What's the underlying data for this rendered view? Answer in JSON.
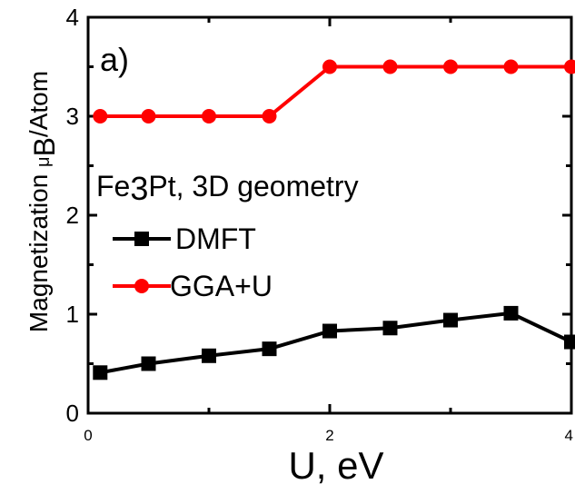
{
  "chart_data": {
    "type": "line",
    "panel_label": "a)",
    "xlabel": "U, eV",
    "ylabel": "Magnetization μ_B/Atom",
    "ylabel_parts": {
      "main": "Magnetization ",
      "mu": "μ",
      "sub": "B",
      "tail": "/Atom"
    },
    "xlim": [
      0,
      4
    ],
    "ylim": [
      0,
      4
    ],
    "x_ticks": [
      0,
      2,
      4
    ],
    "y_ticks": [
      0,
      1,
      2,
      3,
      4
    ],
    "grid": false,
    "legend_title": "Fe3Pt, 3D geometry",
    "legend_title_parts": {
      "a": "Fe",
      "sub": "3",
      "b": "Pt, 3D geometry"
    },
    "legend_position": "center-left",
    "series": [
      {
        "name": "DMFT",
        "color": "#000000",
        "marker": "square",
        "x": [
          0.1,
          0.5,
          1.0,
          1.5,
          2.0,
          2.5,
          3.0,
          3.5,
          4.0
        ],
        "y": [
          0.41,
          0.5,
          0.58,
          0.65,
          0.83,
          0.86,
          0.94,
          1.01,
          0.72
        ]
      },
      {
        "name": "GGA+U",
        "color": "#ff0000",
        "marker": "circle",
        "x": [
          0.1,
          0.5,
          1.0,
          1.5,
          2.0,
          2.5,
          3.0,
          3.5,
          4.0
        ],
        "y": [
          3.0,
          3.0,
          3.0,
          3.0,
          3.5,
          3.5,
          3.5,
          3.5,
          3.5
        ]
      }
    ]
  }
}
